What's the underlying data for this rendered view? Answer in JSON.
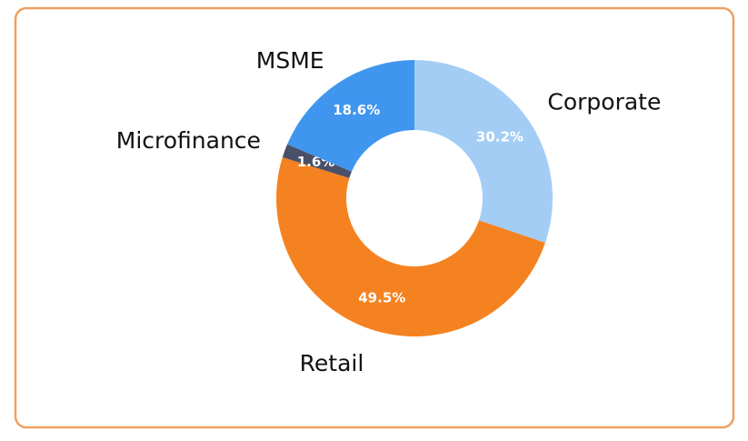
{
  "chart_data": {
    "type": "donut",
    "categories": [
      "Corporate",
      "Retail",
      "Microfinance",
      "MSME"
    ],
    "values": [
      30.2,
      49.5,
      1.6,
      18.6
    ],
    "value_labels": [
      "30.2%",
      "49.5%",
      "1.6%",
      "18.6%"
    ],
    "colors": [
      "#a3cdf5",
      "#f58220",
      "#4a5068",
      "#4096ee"
    ]
  }
}
